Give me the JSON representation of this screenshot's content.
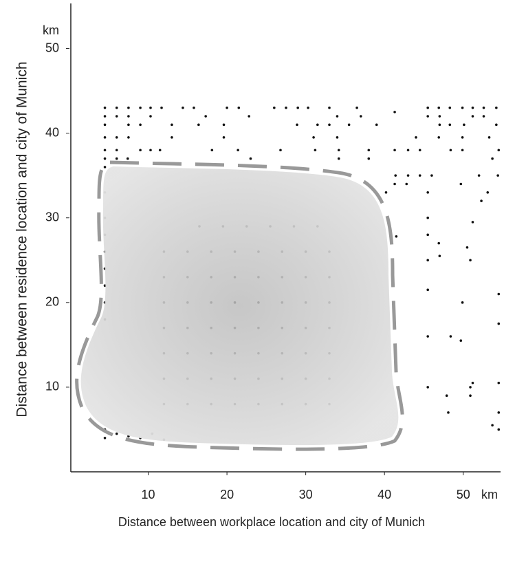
{
  "chart_data": {
    "type": "scatter",
    "x_label": "Distance between workplace location and city of Munich",
    "y_label": "Distance between residence location and city of Munich",
    "x_unit": "km",
    "y_unit": "km",
    "xlim": [
      0,
      55
    ],
    "ylim": [
      0,
      55
    ],
    "xticks": [
      10,
      20,
      30,
      40,
      50
    ],
    "yticks": [
      10,
      20,
      30,
      40,
      50
    ],
    "color": "#111",
    "points": [
      [
        4.5,
        43
      ],
      [
        6,
        43
      ],
      [
        7.5,
        43
      ],
      [
        9,
        43
      ],
      [
        10.3,
        43
      ],
      [
        11.7,
        43
      ],
      [
        14.4,
        43
      ],
      [
        15.8,
        43
      ],
      [
        20,
        43
      ],
      [
        21.5,
        43
      ],
      [
        26,
        43
      ],
      [
        27.5,
        43
      ],
      [
        29,
        43
      ],
      [
        30.3,
        43
      ],
      [
        33,
        43
      ],
      [
        36.5,
        43
      ],
      [
        41.3,
        42.5
      ],
      [
        45.5,
        43
      ],
      [
        46.9,
        43
      ],
      [
        48.3,
        43
      ],
      [
        49.9,
        43
      ],
      [
        51.2,
        43
      ],
      [
        52.6,
        43
      ],
      [
        54.2,
        43
      ],
      [
        4.5,
        42
      ],
      [
        6,
        42
      ],
      [
        7.5,
        42
      ],
      [
        10.3,
        42
      ],
      [
        17.3,
        42
      ],
      [
        22.8,
        42
      ],
      [
        34,
        42
      ],
      [
        37,
        42
      ],
      [
        45.5,
        42
      ],
      [
        47,
        42
      ],
      [
        51.2,
        42
      ],
      [
        52.6,
        42
      ],
      [
        4.5,
        41
      ],
      [
        7.5,
        41
      ],
      [
        9,
        41
      ],
      [
        13,
        41
      ],
      [
        16.4,
        41
      ],
      [
        19.6,
        41
      ],
      [
        28.9,
        41
      ],
      [
        31.5,
        41
      ],
      [
        33,
        41
      ],
      [
        35.5,
        41
      ],
      [
        39,
        41
      ],
      [
        47,
        41
      ],
      [
        48.3,
        41
      ],
      [
        50.1,
        41
      ],
      [
        54.2,
        41
      ],
      [
        4.5,
        39.5
      ],
      [
        6,
        39.5
      ],
      [
        7.5,
        39.5
      ],
      [
        13,
        39.5
      ],
      [
        19.6,
        39.5
      ],
      [
        31,
        39.5
      ],
      [
        34,
        39.5
      ],
      [
        44,
        39.5
      ],
      [
        46.9,
        39.5
      ],
      [
        49.9,
        39.5
      ],
      [
        53.3,
        39.5
      ],
      [
        4.5,
        38
      ],
      [
        6,
        38
      ],
      [
        9,
        38
      ],
      [
        10.3,
        38
      ],
      [
        11.5,
        38
      ],
      [
        18.1,
        38
      ],
      [
        21.4,
        38
      ],
      [
        26.8,
        38
      ],
      [
        31.2,
        38
      ],
      [
        34.2,
        38
      ],
      [
        38,
        38
      ],
      [
        41.3,
        38
      ],
      [
        43,
        38
      ],
      [
        44.5,
        38
      ],
      [
        48.4,
        38
      ],
      [
        49.9,
        38
      ],
      [
        54.5,
        38
      ],
      [
        4.5,
        37
      ],
      [
        6,
        37
      ],
      [
        7.4,
        37
      ],
      [
        23,
        37
      ],
      [
        34.2,
        37
      ],
      [
        38,
        37
      ],
      [
        53.7,
        37
      ],
      [
        41.4,
        35
      ],
      [
        43,
        35
      ],
      [
        44.5,
        35
      ],
      [
        46,
        35
      ],
      [
        52,
        35
      ],
      [
        54.4,
        35
      ],
      [
        41.3,
        34
      ],
      [
        42.8,
        34
      ],
      [
        49.7,
        34
      ],
      [
        40.2,
        33
      ],
      [
        45.5,
        33
      ],
      [
        53.1,
        33
      ],
      [
        52.3,
        32
      ],
      [
        45.5,
        30
      ],
      [
        51.2,
        29.5
      ],
      [
        45.5,
        28
      ],
      [
        41.5,
        27.8
      ],
      [
        46.9,
        27
      ],
      [
        50.5,
        26.5
      ],
      [
        45.5,
        25
      ],
      [
        47,
        25.5
      ],
      [
        50.9,
        25
      ],
      [
        45.5,
        21.5
      ],
      [
        54.5,
        21
      ],
      [
        49.9,
        20
      ],
      [
        54.5,
        17.5
      ],
      [
        45.5,
        16
      ],
      [
        48.4,
        16
      ],
      [
        49.7,
        15.5
      ],
      [
        51.2,
        10.5
      ],
      [
        54.5,
        10.5
      ],
      [
        45.5,
        10
      ],
      [
        50.9,
        10
      ],
      [
        47.9,
        9
      ],
      [
        50.9,
        9
      ],
      [
        48.1,
        7
      ],
      [
        54.5,
        7
      ],
      [
        53.7,
        5.5
      ],
      [
        54.5,
        5
      ],
      [
        4.5,
        36
      ],
      [
        4.5,
        33
      ],
      [
        4.5,
        30
      ],
      [
        4.5,
        28
      ],
      [
        4.5,
        26
      ],
      [
        4.5,
        24
      ],
      [
        4.5,
        22
      ],
      [
        4.5,
        20
      ],
      [
        4.5,
        18
      ],
      [
        4.5,
        5
      ],
      [
        6,
        4.5
      ],
      [
        7.5,
        4.2
      ],
      [
        4.5,
        4
      ],
      [
        9,
        4
      ],
      [
        10.5,
        4.5
      ],
      [
        12,
        3.8
      ],
      [
        12,
        8
      ],
      [
        15,
        8
      ],
      [
        18,
        8
      ],
      [
        21,
        8
      ],
      [
        24,
        8
      ],
      [
        27,
        8
      ],
      [
        30,
        8
      ],
      [
        33,
        8
      ],
      [
        12,
        11
      ],
      [
        15,
        11
      ],
      [
        18,
        11
      ],
      [
        21,
        11
      ],
      [
        24,
        11
      ],
      [
        27,
        11
      ],
      [
        30,
        11
      ],
      [
        33,
        11
      ],
      [
        12,
        14
      ],
      [
        15,
        14
      ],
      [
        18,
        14
      ],
      [
        21,
        14
      ],
      [
        24,
        14
      ],
      [
        27,
        14
      ],
      [
        30,
        14
      ],
      [
        33,
        14
      ],
      [
        12,
        17
      ],
      [
        15,
        17
      ],
      [
        18,
        17
      ],
      [
        21,
        17
      ],
      [
        24,
        17
      ],
      [
        27,
        17
      ],
      [
        30,
        17
      ],
      [
        33,
        17
      ],
      [
        12,
        20
      ],
      [
        15,
        20
      ],
      [
        18,
        20
      ],
      [
        21,
        20
      ],
      [
        24,
        20
      ],
      [
        27,
        20
      ],
      [
        30,
        20
      ],
      [
        33,
        20
      ],
      [
        12,
        23
      ],
      [
        15,
        23
      ],
      [
        18,
        23
      ],
      [
        21,
        23
      ],
      [
        24,
        23
      ],
      [
        27,
        23
      ],
      [
        30,
        23
      ],
      [
        33,
        23
      ],
      [
        12,
        26
      ],
      [
        15,
        26
      ],
      [
        18,
        26
      ],
      [
        21,
        26
      ],
      [
        24,
        26
      ],
      [
        27,
        26
      ],
      [
        30,
        26
      ],
      [
        33,
        26
      ],
      [
        16.5,
        29
      ],
      [
        19.5,
        29
      ],
      [
        22.5,
        29
      ],
      [
        25.5,
        29
      ],
      [
        28.5,
        29
      ],
      [
        31.5,
        29
      ]
    ]
  }
}
